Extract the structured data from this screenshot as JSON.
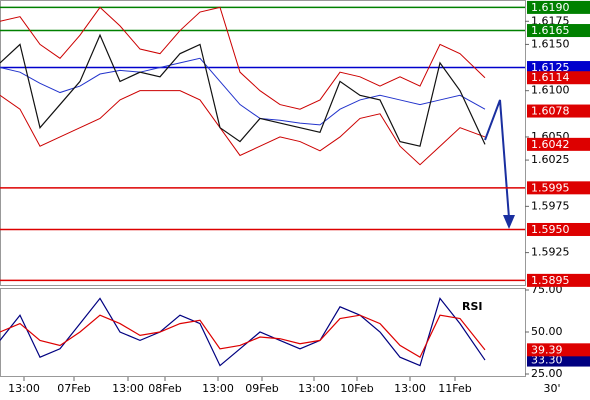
{
  "chart_data": [
    {
      "type": "line",
      "xlim": [
        0,
        525
      ],
      "ylim": [
        1.589,
        1.6198
      ],
      "yticks": [
        {
          "value": 1.6175,
          "label": "1.6175"
        },
        {
          "value": 1.615,
          "label": "1.6150"
        },
        {
          "value": 1.61,
          "label": "1.6100"
        },
        {
          "value": 1.605,
          "label": "1.6050"
        },
        {
          "value": 1.6025,
          "label": "1.6025"
        },
        {
          "value": 1.5975,
          "label": "1.5975"
        },
        {
          "value": 1.5925,
          "label": "1.5925"
        }
      ],
      "xticks": [
        {
          "value": 24,
          "label": "13:00"
        },
        {
          "value": 74,
          "label": "07Feb"
        },
        {
          "value": 128,
          "label": "13:00"
        },
        {
          "value": 165,
          "label": "08Feb"
        },
        {
          "value": 218,
          "label": "13:00"
        },
        {
          "value": 262,
          "label": "09Feb"
        },
        {
          "value": 314,
          "label": "13:00"
        },
        {
          "value": 357,
          "label": "10Feb"
        },
        {
          "value": 410,
          "label": "13:00"
        },
        {
          "value": 455,
          "label": "11Feb"
        }
      ],
      "timeframe": "30'",
      "x": [
        0,
        20,
        40,
        60,
        80,
        100,
        120,
        140,
        160,
        180,
        200,
        220,
        240,
        260,
        280,
        300,
        320,
        340,
        360,
        380,
        400,
        420,
        440,
        460,
        485
      ],
      "series": [
        {
          "color": "#cc0000",
          "values": [
            1.6175,
            1.618,
            1.615,
            1.6135,
            1.616,
            1.619,
            1.617,
            1.6145,
            1.614,
            1.6165,
            1.6185,
            1.619,
            1.612,
            1.61,
            1.6085,
            1.608,
            1.609,
            1.612,
            1.6115,
            1.6105,
            1.6115,
            1.6105,
            1.615,
            1.614,
            1.6114
          ]
        },
        {
          "color": "#cc0000",
          "values": [
            1.6095,
            1.608,
            1.604,
            1.605,
            1.606,
            1.607,
            1.609,
            1.61,
            1.61,
            1.61,
            1.609,
            1.606,
            1.603,
            1.604,
            1.605,
            1.6045,
            1.6035,
            1.605,
            1.607,
            1.6075,
            1.604,
            1.602,
            1.604,
            1.606,
            1.605
          ]
        },
        {
          "color": "#2233cc",
          "values": [
            1.6125,
            1.612,
            1.6108,
            1.6098,
            1.6105,
            1.6118,
            1.6122,
            1.612,
            1.6125,
            1.613,
            1.6135,
            1.611,
            1.6085,
            1.607,
            1.6068,
            1.6065,
            1.6063,
            1.608,
            1.609,
            1.6095,
            1.609,
            1.6085,
            1.609,
            1.6095,
            1.608
          ]
        },
        {
          "color": "#111111",
          "values": [
            1.613,
            1.615,
            1.606,
            1.6085,
            1.611,
            1.616,
            1.611,
            1.612,
            1.6115,
            1.614,
            1.615,
            1.606,
            1.6045,
            1.607,
            1.6065,
            1.606,
            1.6055,
            1.611,
            1.6095,
            1.609,
            1.6045,
            1.604,
            1.613,
            1.61,
            1.6042
          ]
        }
      ],
      "levels": [
        {
          "value": 1.619,
          "label": "1.6190",
          "color": "#008000"
        },
        {
          "value": 1.6165,
          "label": "1.6165",
          "color": "#008000"
        },
        {
          "value": 1.6125,
          "label": "1.6125",
          "color": "#0000cc"
        },
        {
          "value": 1.5995,
          "label": "1.5995",
          "color": "#dd0000"
        },
        {
          "value": 1.595,
          "label": "1.5950",
          "color": "#dd0000"
        },
        {
          "value": 1.5895,
          "label": "1.5895",
          "color": "#dd0000"
        }
      ],
      "markers": [
        {
          "value": 1.6114,
          "label": "1.6114",
          "color": "#dd0000"
        },
        {
          "value": 1.6078,
          "label": "1.6078",
          "color": "#dd0000"
        },
        {
          "value": 1.6042,
          "label": "1.6042",
          "color": "#dd0000"
        }
      ]
    },
    {
      "type": "line",
      "label": "RSI",
      "xlim": [
        0,
        525
      ],
      "ylim": [
        25,
        75
      ],
      "yticks": [
        {
          "value": 75,
          "label": "75.00"
        },
        {
          "value": 50,
          "label": "50.00"
        },
        {
          "value": 25,
          "label": "25.00"
        }
      ],
      "x": [
        0,
        20,
        40,
        60,
        80,
        100,
        120,
        140,
        160,
        180,
        200,
        220,
        240,
        260,
        280,
        300,
        320,
        340,
        360,
        380,
        400,
        420,
        440,
        460,
        485
      ],
      "series": [
        {
          "color": "#000080",
          "values": [
            45,
            60,
            35,
            40,
            55,
            70,
            50,
            45,
            50,
            60,
            55,
            30,
            40,
            50,
            45,
            40,
            45,
            65,
            60,
            50,
            35,
            30,
            70,
            55,
            33.3
          ],
          "value_labels": [
            null,
            null,
            null,
            null,
            null,
            null,
            null,
            null,
            null,
            null,
            null,
            null,
            null,
            null,
            null,
            null,
            null,
            null,
            null,
            null,
            null,
            null,
            null,
            null,
            "33.30"
          ]
        },
        {
          "color": "#dd0000",
          "values": [
            50,
            55,
            45,
            42,
            50,
            60,
            55,
            48,
            50,
            55,
            57,
            40,
            42,
            47,
            46,
            43,
            45,
            58,
            60,
            55,
            42,
            35,
            60,
            58,
            39.39
          ]
        }
      ]
    }
  ]
}
